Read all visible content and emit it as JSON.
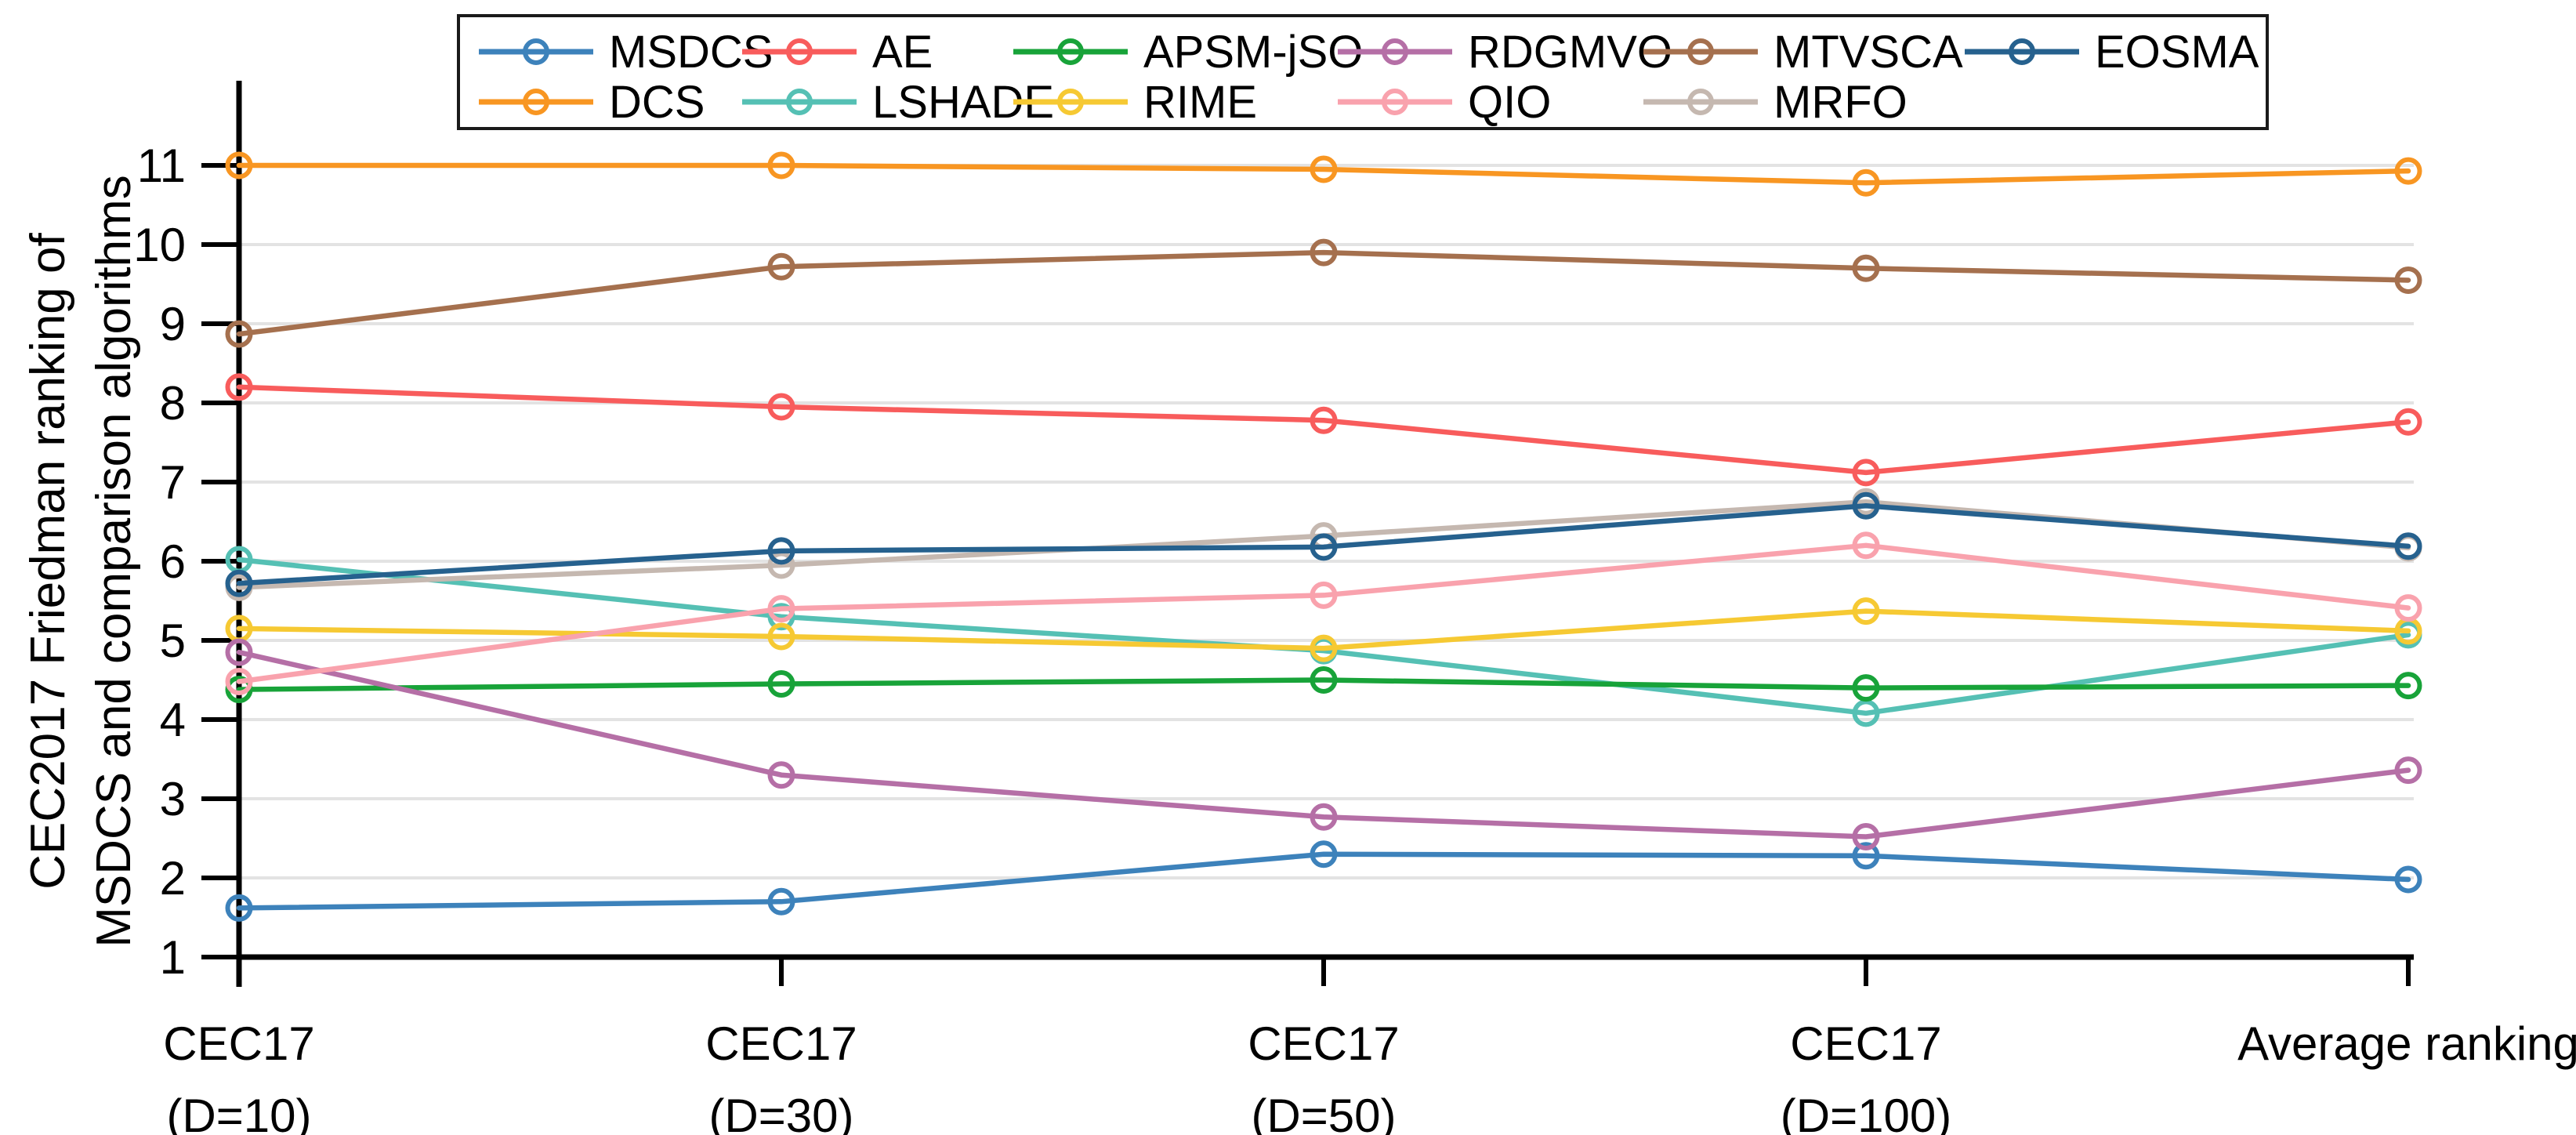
{
  "figure": {
    "ylabel_line1": "CEC2017 Friedman ranking of",
    "ylabel_line2": "MSDCS and comparison algorithms"
  },
  "colors": {
    "axis": "#000000",
    "grid": "#e3e3e3",
    "background": "#ffffff",
    "text": "#000000"
  },
  "chart_data": {
    "type": "line",
    "title": "",
    "xlabel": "",
    "ylabel": "CEC2017 Friedman ranking of MSDCS and comparison algorithms",
    "ylim": [
      1,
      12
    ],
    "yticks": [
      1,
      2,
      3,
      4,
      5,
      6,
      7,
      8,
      9,
      10,
      11
    ],
    "grid": "horizontal-light-gray",
    "legend_position": "top-two-rows",
    "marker": "open-circle",
    "categories_line1": [
      "CEC17",
      "CEC17",
      "CEC17",
      "CEC17",
      "Average ranking"
    ],
    "categories_line2": [
      "(D=10)",
      "(D=30)",
      "(D=50)",
      "(D=100)",
      ""
    ],
    "series": [
      {
        "name": "MSDCS",
        "color": "#3d82bb",
        "values": [
          1.62,
          1.7,
          2.3,
          2.28,
          1.98
        ]
      },
      {
        "name": "DCS",
        "color": "#f89622",
        "values": [
          11.0,
          11.0,
          10.95,
          10.78,
          10.93
        ]
      },
      {
        "name": "AE",
        "color": "#f85c5c",
        "values": [
          8.2,
          7.95,
          7.78,
          7.12,
          7.76
        ]
      },
      {
        "name": "LSHADE",
        "color": "#55c0b4",
        "values": [
          6.02,
          5.3,
          4.87,
          4.08,
          5.07
        ]
      },
      {
        "name": "APSM-jSO",
        "color": "#18a339",
        "values": [
          4.38,
          4.45,
          4.5,
          4.4,
          4.43
        ]
      },
      {
        "name": "RIME",
        "color": "#f6c933",
        "values": [
          5.15,
          5.05,
          4.9,
          5.37,
          5.12
        ]
      },
      {
        "name": "RDGMVO",
        "color": "#b56fa6",
        "values": [
          4.85,
          3.3,
          2.77,
          2.52,
          3.36
        ]
      },
      {
        "name": "QIO",
        "color": "#f9a2ad",
        "values": [
          4.48,
          5.4,
          5.57,
          6.2,
          5.41
        ]
      },
      {
        "name": "MTVSCA",
        "color": "#a5704e",
        "values": [
          8.87,
          9.72,
          9.9,
          9.7,
          9.55
        ]
      },
      {
        "name": "MRFO",
        "color": "#c5b8b0",
        "values": [
          5.67,
          5.95,
          6.32,
          6.75,
          6.17
        ]
      },
      {
        "name": "EOSMA",
        "color": "#26618e",
        "values": [
          5.72,
          6.13,
          6.18,
          6.7,
          6.19
        ]
      }
    ]
  }
}
